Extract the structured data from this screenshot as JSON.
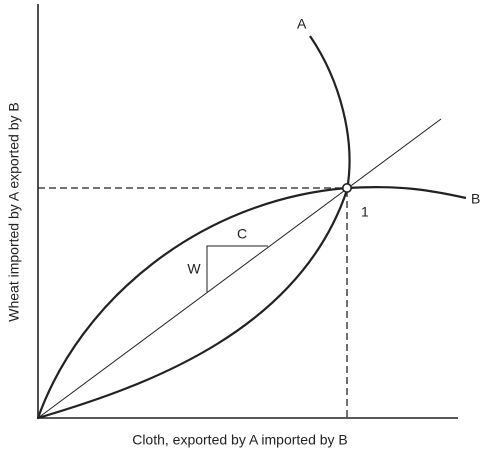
{
  "diagram": {
    "x_axis_label": "Cloth, exported by A imported by B",
    "y_axis_label": "Wheat imported by A exported by B",
    "curves": [
      {
        "label": "A"
      },
      {
        "label": "B"
      }
    ],
    "point_label": "1",
    "triangle": {
      "horizontal_label": "C",
      "vertical_label": "W"
    }
  }
}
